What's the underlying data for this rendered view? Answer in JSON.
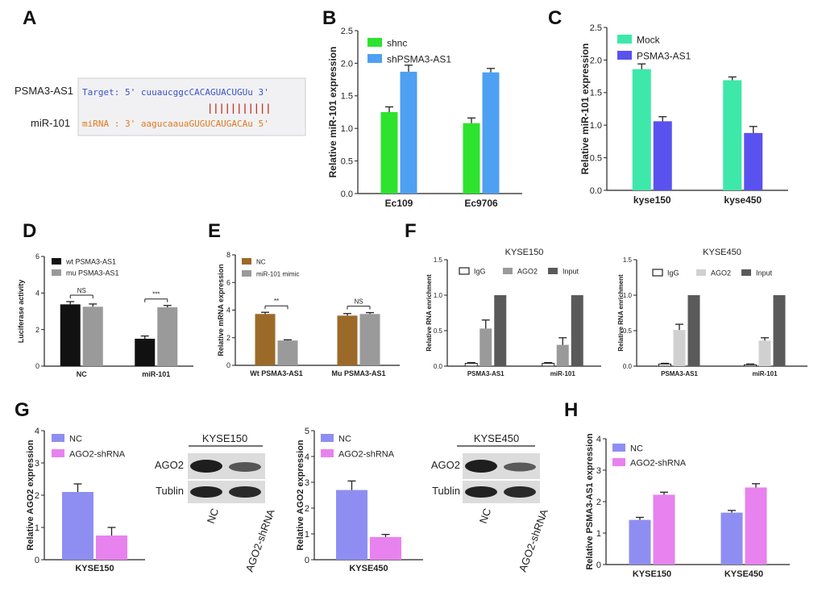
{
  "panel_letters": [
    "A",
    "B",
    "C",
    "D",
    "E",
    "F",
    "G",
    "H"
  ],
  "panelA": {
    "gene_label": "PSMA3-AS1",
    "mirna_label": "miR-101",
    "target_line": "Target: 5' cuuaucggcCACAGUACUGUu 3'",
    "bonds": "|||||||||||",
    "mirna_line": "miRNA : 3' aagucaauaGUGUCAUGACAu 5'",
    "colors": {
      "target": "#3a52c4",
      "mirna": "#e07a20",
      "bonds": "#c0392b"
    }
  },
  "western_G1": {
    "title": "KYSE150",
    "rows": [
      "AGO2",
      "Tublin"
    ],
    "lanes": [
      "NC",
      "AGO2-shRNA"
    ]
  },
  "western_G2": {
    "title": "KYSE450",
    "rows": [
      "AGO2",
      "Tublin"
    ],
    "lanes": [
      "NC",
      "AGO2-shRNA"
    ]
  },
  "chart_data": [
    {
      "id": "B",
      "type": "bar",
      "title": "",
      "xlabel": "",
      "ylabel": "Relative miR-101 expression",
      "categories": [
        "Ec109",
        "Ec9706"
      ],
      "ylim": [
        0,
        2.5
      ],
      "yticks": [
        "0.0",
        "0.5",
        "1.0",
        "1.5",
        "2.0",
        "2.5"
      ],
      "series": [
        {
          "name": "shnc",
          "color": "#2ee32e",
          "values": [
            1.25,
            1.08
          ],
          "errors": [
            0.08,
            0.08
          ]
        },
        {
          "name": "shPSMA3-AS1",
          "color": "#4da0f2",
          "values": [
            1.87,
            1.86
          ],
          "errors": [
            0.1,
            0.06
          ]
        }
      ]
    },
    {
      "id": "C",
      "type": "bar",
      "title": "",
      "xlabel": "",
      "ylabel": "Relative miR-101 expression",
      "categories": [
        "kyse150",
        "kyse450"
      ],
      "ylim": [
        0,
        2.5
      ],
      "yticks": [
        "0.0",
        "0.5",
        "1.0",
        "1.5",
        "2.0",
        "2.5"
      ],
      "series": [
        {
          "name": "Mock",
          "color": "#3ee8aa",
          "values": [
            1.86,
            1.69
          ],
          "errors": [
            0.08,
            0.05
          ]
        },
        {
          "name": "PSMA3-AS1",
          "color": "#5a52ee",
          "values": [
            1.06,
            0.88
          ],
          "errors": [
            0.07,
            0.1
          ]
        }
      ]
    },
    {
      "id": "D",
      "type": "bar",
      "title": "",
      "xlabel": "",
      "ylabel": "Luciferase activity",
      "categories": [
        "NC",
        "miR-101"
      ],
      "ylim": [
        0,
        6
      ],
      "yticks": [
        "0",
        "2",
        "4",
        "6"
      ],
      "series": [
        {
          "name": "wt PSMA3-AS1",
          "color": "#111111",
          "values": [
            3.38,
            1.5
          ],
          "errors": [
            0.15,
            0.15
          ]
        },
        {
          "name": "mu PSMA3-AS1",
          "color": "#9a9a9a",
          "values": [
            3.25,
            3.22
          ],
          "errors": [
            0.15,
            0.1
          ]
        }
      ],
      "annotations": [
        {
          "category": "NC",
          "text": "NS"
        },
        {
          "category": "miR-101",
          "text": "***"
        }
      ]
    },
    {
      "id": "E",
      "type": "bar",
      "title": "",
      "xlabel": "",
      "ylabel": "Relative mRNA expression",
      "categories": [
        "Wt PSMA3-AS1",
        "Mu PSMA3-AS1"
      ],
      "ylim": [
        0,
        8
      ],
      "yticks": [
        "0",
        "2",
        "4",
        "6",
        "8"
      ],
      "series": [
        {
          "name": "NC",
          "color": "#9c6a28",
          "values": [
            3.72,
            3.6
          ],
          "errors": [
            0.12,
            0.15
          ]
        },
        {
          "name": "miR-101 mimic",
          "color": "#9a9a9a",
          "values": [
            1.8,
            3.72
          ],
          "errors": [
            0.05,
            0.1
          ]
        }
      ],
      "annotations": [
        {
          "category": "Wt PSMA3-AS1",
          "text": "**"
        },
        {
          "category": "Mu PSMA3-AS1",
          "text": "NS"
        }
      ]
    },
    {
      "id": "F1",
      "type": "bar",
      "title": "KYSE150",
      "xlabel": "",
      "ylabel": "Relative RNA enrichment",
      "categories": [
        "PSMA3-AS1",
        "miR-101"
      ],
      "ylim": [
        0,
        1.5
      ],
      "yticks": [
        "0.0",
        "0.5",
        "1.0",
        "1.5"
      ],
      "series": [
        {
          "name": "IgG",
          "color": "#ffffff",
          "values": [
            0.04,
            0.04
          ],
          "errors": [
            0.01,
            0.01
          ]
        },
        {
          "name": "AGO2",
          "color": "#9a9a9a",
          "values": [
            0.53,
            0.3
          ],
          "errors": [
            0.12,
            0.1
          ]
        },
        {
          "name": "Input",
          "color": "#5a5a5a",
          "values": [
            1.0,
            1.0
          ],
          "errors": [
            0,
            0
          ]
        }
      ]
    },
    {
      "id": "F2",
      "type": "bar",
      "title": "KYSE450",
      "xlabel": "",
      "ylabel": "Relative RNA enrichment",
      "categories": [
        "PSMA3-AS1",
        "miR-101"
      ],
      "ylim": [
        0,
        1.5
      ],
      "yticks": [
        "0.0",
        "0.5",
        "1.0",
        "1.5"
      ],
      "series": [
        {
          "name": "IgG",
          "color": "#ffffff",
          "values": [
            0.03,
            0.02
          ],
          "errors": [
            0.01,
            0.01
          ]
        },
        {
          "name": "AGO2",
          "color": "#d0d0d0",
          "values": [
            0.51,
            0.36
          ],
          "errors": [
            0.08,
            0.04
          ]
        },
        {
          "name": "Input",
          "color": "#5a5a5a",
          "values": [
            1.0,
            1.0
          ],
          "errors": [
            0,
            0
          ]
        }
      ]
    },
    {
      "id": "G1",
      "type": "bar",
      "title": "",
      "xlabel": "KYSE150",
      "ylabel": "Relative AGO2 expression",
      "categories": [
        "KYSE150"
      ],
      "ylim": [
        0,
        4
      ],
      "yticks": [
        "0",
        "1",
        "2",
        "3",
        "4"
      ],
      "series": [
        {
          "name": "NC",
          "color": "#8e8ef2",
          "values": [
            2.1
          ],
          "errors": [
            0.25
          ]
        },
        {
          "name": "AGO2-shRNA",
          "color": "#e882ee",
          "values": [
            0.75
          ],
          "errors": [
            0.25
          ]
        }
      ]
    },
    {
      "id": "G2",
      "type": "bar",
      "title": "",
      "xlabel": "KYSE450",
      "ylabel": "Relative AGO2 expression",
      "categories": [
        "KYSE450"
      ],
      "ylim": [
        0,
        5
      ],
      "yticks": [
        "0",
        "1",
        "2",
        "3",
        "4",
        "5"
      ],
      "series": [
        {
          "name": "NC",
          "color": "#8e8ef2",
          "values": [
            2.7
          ],
          "errors": [
            0.35
          ]
        },
        {
          "name": "AGO2-shRNA",
          "color": "#e882ee",
          "values": [
            0.88
          ],
          "errors": [
            0.1
          ]
        }
      ]
    },
    {
      "id": "H",
      "type": "bar",
      "title": "",
      "xlabel": "",
      "ylabel": "Relative PSMA3-AS1 expression",
      "categories": [
        "KYSE150",
        "KYSE450"
      ],
      "ylim": [
        0,
        4
      ],
      "yticks": [
        "0",
        "1",
        "2",
        "3",
        "4"
      ],
      "series": [
        {
          "name": "NC",
          "color": "#8e8ef2",
          "values": [
            1.42,
            1.65
          ],
          "errors": [
            0.08,
            0.07
          ]
        },
        {
          "name": "AGO2-shRNA",
          "color": "#e882ee",
          "values": [
            2.22,
            2.45
          ],
          "errors": [
            0.08,
            0.12
          ]
        }
      ]
    }
  ]
}
